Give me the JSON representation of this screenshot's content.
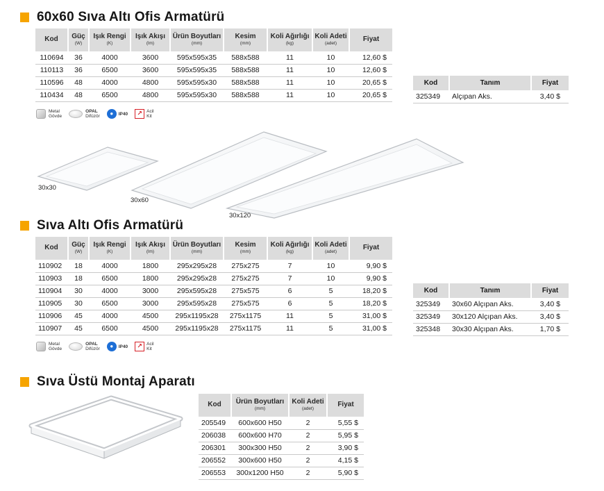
{
  "section1": {
    "title": "60x60 Sıva Altı Ofis Armatürü",
    "headers": [
      {
        "label": "Kod",
        "unit": ""
      },
      {
        "label": "Güç",
        "unit": "(W)"
      },
      {
        "label": "Işık Rengi",
        "unit": "(K)"
      },
      {
        "label": "Işık Akışı",
        "unit": "(lm)"
      },
      {
        "label": "Ürün Boyutları",
        "unit": "(mm)"
      },
      {
        "label": "Kesim",
        "unit": "(mm)"
      },
      {
        "label": "Koli Ağırlığı",
        "unit": "(kg)"
      },
      {
        "label": "Koli Adeti",
        "unit": "(adet)"
      },
      {
        "label": "Fiyat",
        "unit": ""
      }
    ],
    "rows": [
      [
        "110694",
        "36",
        "4000",
        "3600",
        "595x595x35",
        "588x588",
        "11",
        "10",
        "12,60 $"
      ],
      [
        "110113",
        "36",
        "6500",
        "3600",
        "595x595x35",
        "588x588",
        "11",
        "10",
        "12,60 $"
      ],
      [
        "110596",
        "48",
        "4000",
        "4800",
        "595x595x30",
        "588x588",
        "11",
        "10",
        "20,65 $"
      ],
      [
        "110434",
        "48",
        "6500",
        "4800",
        "595x595x30",
        "588x588",
        "11",
        "10",
        "20,65 $"
      ]
    ],
    "side_table": {
      "headers": [
        "Kod",
        "Tanım",
        "Fiyat"
      ],
      "rows": [
        [
          "325349",
          "Alçıpan Aks.",
          "3,40 $"
        ]
      ]
    }
  },
  "features": {
    "metal_line1": "Metal",
    "metal_line2": "Gövde",
    "opal_line1": "OPAL",
    "opal_line2": "Difüzör",
    "ip_label": "IP40",
    "acil_line1": "Acil",
    "acil_line2": "Kit"
  },
  "image_labels": {
    "p30x30": "30x30",
    "p30x60": "30x60",
    "p30x120": "30x120"
  },
  "section2": {
    "title": "Sıva Altı Ofis Armatürü",
    "rows": [
      [
        "110902",
        "18",
        "4000",
        "1800",
        "295x295x28",
        "275x275",
        "7",
        "10",
        "9,90 $"
      ],
      [
        "110903",
        "18",
        "6500",
        "1800",
        "295x295x28",
        "275x275",
        "7",
        "10",
        "9,90 $"
      ],
      [
        "110904",
        "30",
        "4000",
        "3000",
        "295x595x28",
        "275x575",
        "6",
        "5",
        "18,20 $"
      ],
      [
        "110905",
        "30",
        "6500",
        "3000",
        "295x595x28",
        "275x575",
        "6",
        "5",
        "18,20 $"
      ],
      [
        "110906",
        "45",
        "4000",
        "4500",
        "295x1195x28",
        "275x1175",
        "11",
        "5",
        "31,00 $"
      ],
      [
        "110907",
        "45",
        "6500",
        "4500",
        "295x1195x28",
        "275x1175",
        "11",
        "5",
        "31,00 $"
      ]
    ],
    "side_table": {
      "headers": [
        "Kod",
        "Tanım",
        "Fiyat"
      ],
      "rows": [
        [
          "325349",
          "30x60 Alçıpan Aks.",
          "3,40 $"
        ],
        [
          "325349",
          "30x120 Alçıpan Aks.",
          "3,40 $"
        ],
        [
          "325348",
          "30x30 Alçıpan Aks.",
          "1,70 $"
        ]
      ]
    }
  },
  "section3": {
    "title": "Sıva Üstü Montaj Aparatı",
    "headers": [
      {
        "label": "Kod",
        "unit": ""
      },
      {
        "label": "Ürün Boyutları",
        "unit": "(mm)"
      },
      {
        "label": "Koli Adeti",
        "unit": "(adet)"
      },
      {
        "label": "Fiyat",
        "unit": ""
      }
    ],
    "rows": [
      [
        "205549",
        "600x600 H50",
        "2",
        "5,55 $"
      ],
      [
        "206038",
        "600x600 H70",
        "2",
        "5,95 $"
      ],
      [
        "206301",
        "300x300 H50",
        "2",
        "3,90 $"
      ],
      [
        "206552",
        "300x600 H50",
        "2",
        "4,15 $"
      ],
      [
        "206553",
        "300x1200 H50",
        "2",
        "5,90 $"
      ]
    ]
  }
}
